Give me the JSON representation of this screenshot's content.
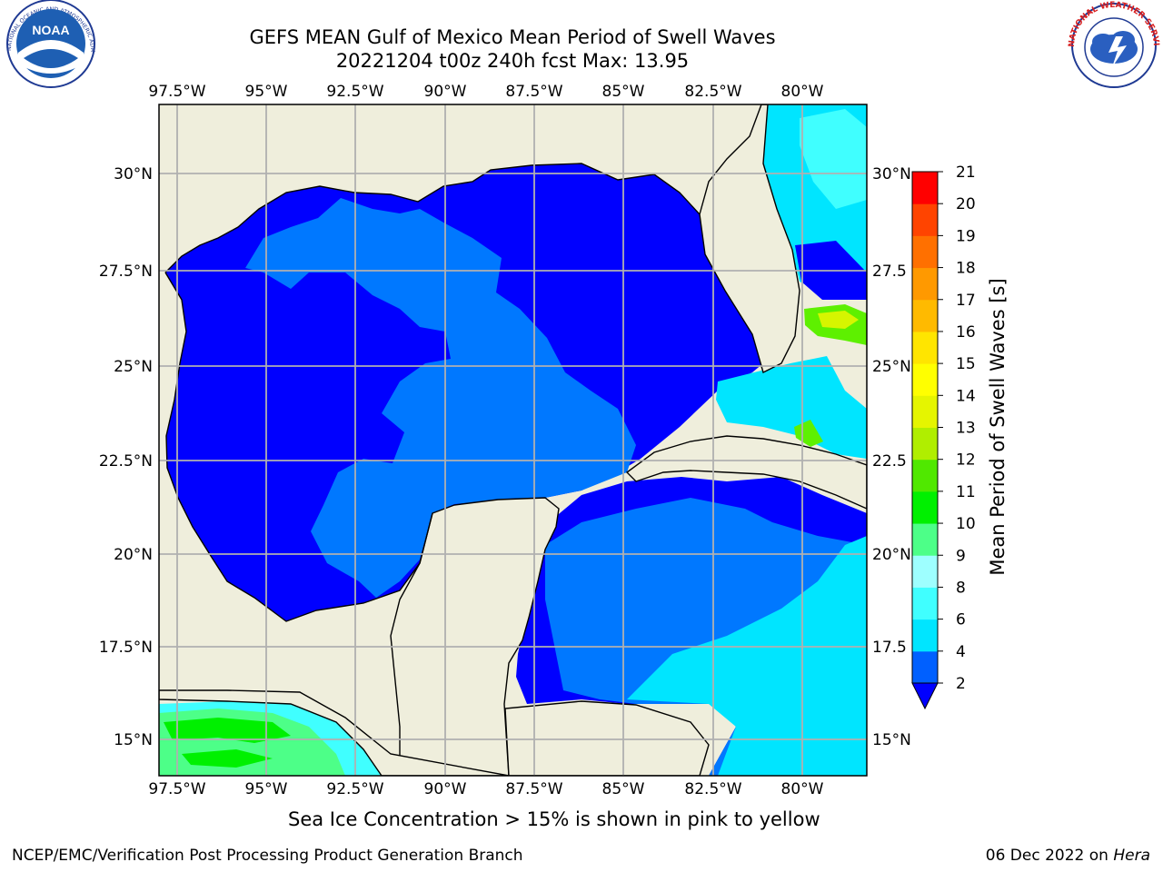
{
  "header": {
    "title": "GEFS MEAN Gulf of Mexico Mean Period of Swell Waves",
    "subtitle": "20221204 t00z 240h fcst   Max: 13.95",
    "left_logo_text": "NOAA",
    "left_logo_ring_text": "NATIONAL OCEANIC AND ATMOSPHERIC ADMINISTRATION · U.S. DEPARTMENT OF COMMERCE",
    "right_logo_ring_text": "NATIONAL WEATHER SERVICE"
  },
  "map": {
    "lon_labels": [
      "97.5°W",
      "95°W",
      "92.5°W",
      "90°W",
      "87.5°W",
      "85°W",
      "82.5°W",
      "80°W"
    ],
    "lat_labels": [
      "30°N",
      "27.5°N",
      "25°N",
      "22.5°N",
      "20°N",
      "17.5°N",
      "15°N"
    ],
    "lat_labels_right": [
      "30°N",
      "27.5",
      "25°N",
      "22.5",
      "20°N",
      "17.5",
      "15°N"
    ],
    "colors": {
      "land": "#efeedc",
      "coast": "#000000",
      "grid": "#b0b0b0"
    }
  },
  "colorbar": {
    "label": "Mean Period of Swell Waves [s]",
    "ticks": [
      "2",
      "4",
      "6",
      "8",
      "9",
      "10",
      "11",
      "12",
      "13",
      "14",
      "15",
      "16",
      "17",
      "18",
      "19",
      "20",
      "21"
    ],
    "colors": [
      "#0060ff",
      "#00e5ff",
      "#40ffff",
      "#9effff",
      "#4dff88",
      "#00f000",
      "#50e800",
      "#b0ee00",
      "#e5f500",
      "#ffff00",
      "#ffe500",
      "#ffba00",
      "#ff9900",
      "#ff7000",
      "#ff4400",
      "#ff0000"
    ],
    "extend_color": "#0000ff"
  },
  "notes": {
    "sea_ice": "Sea Ice Concentration > 15% is shown in pink to yellow"
  },
  "footer": {
    "left": "NCEP/EMC/Verification Post Processing Product Generation Branch",
    "date": "06 Dec 2022 on",
    "host": "Hera"
  }
}
